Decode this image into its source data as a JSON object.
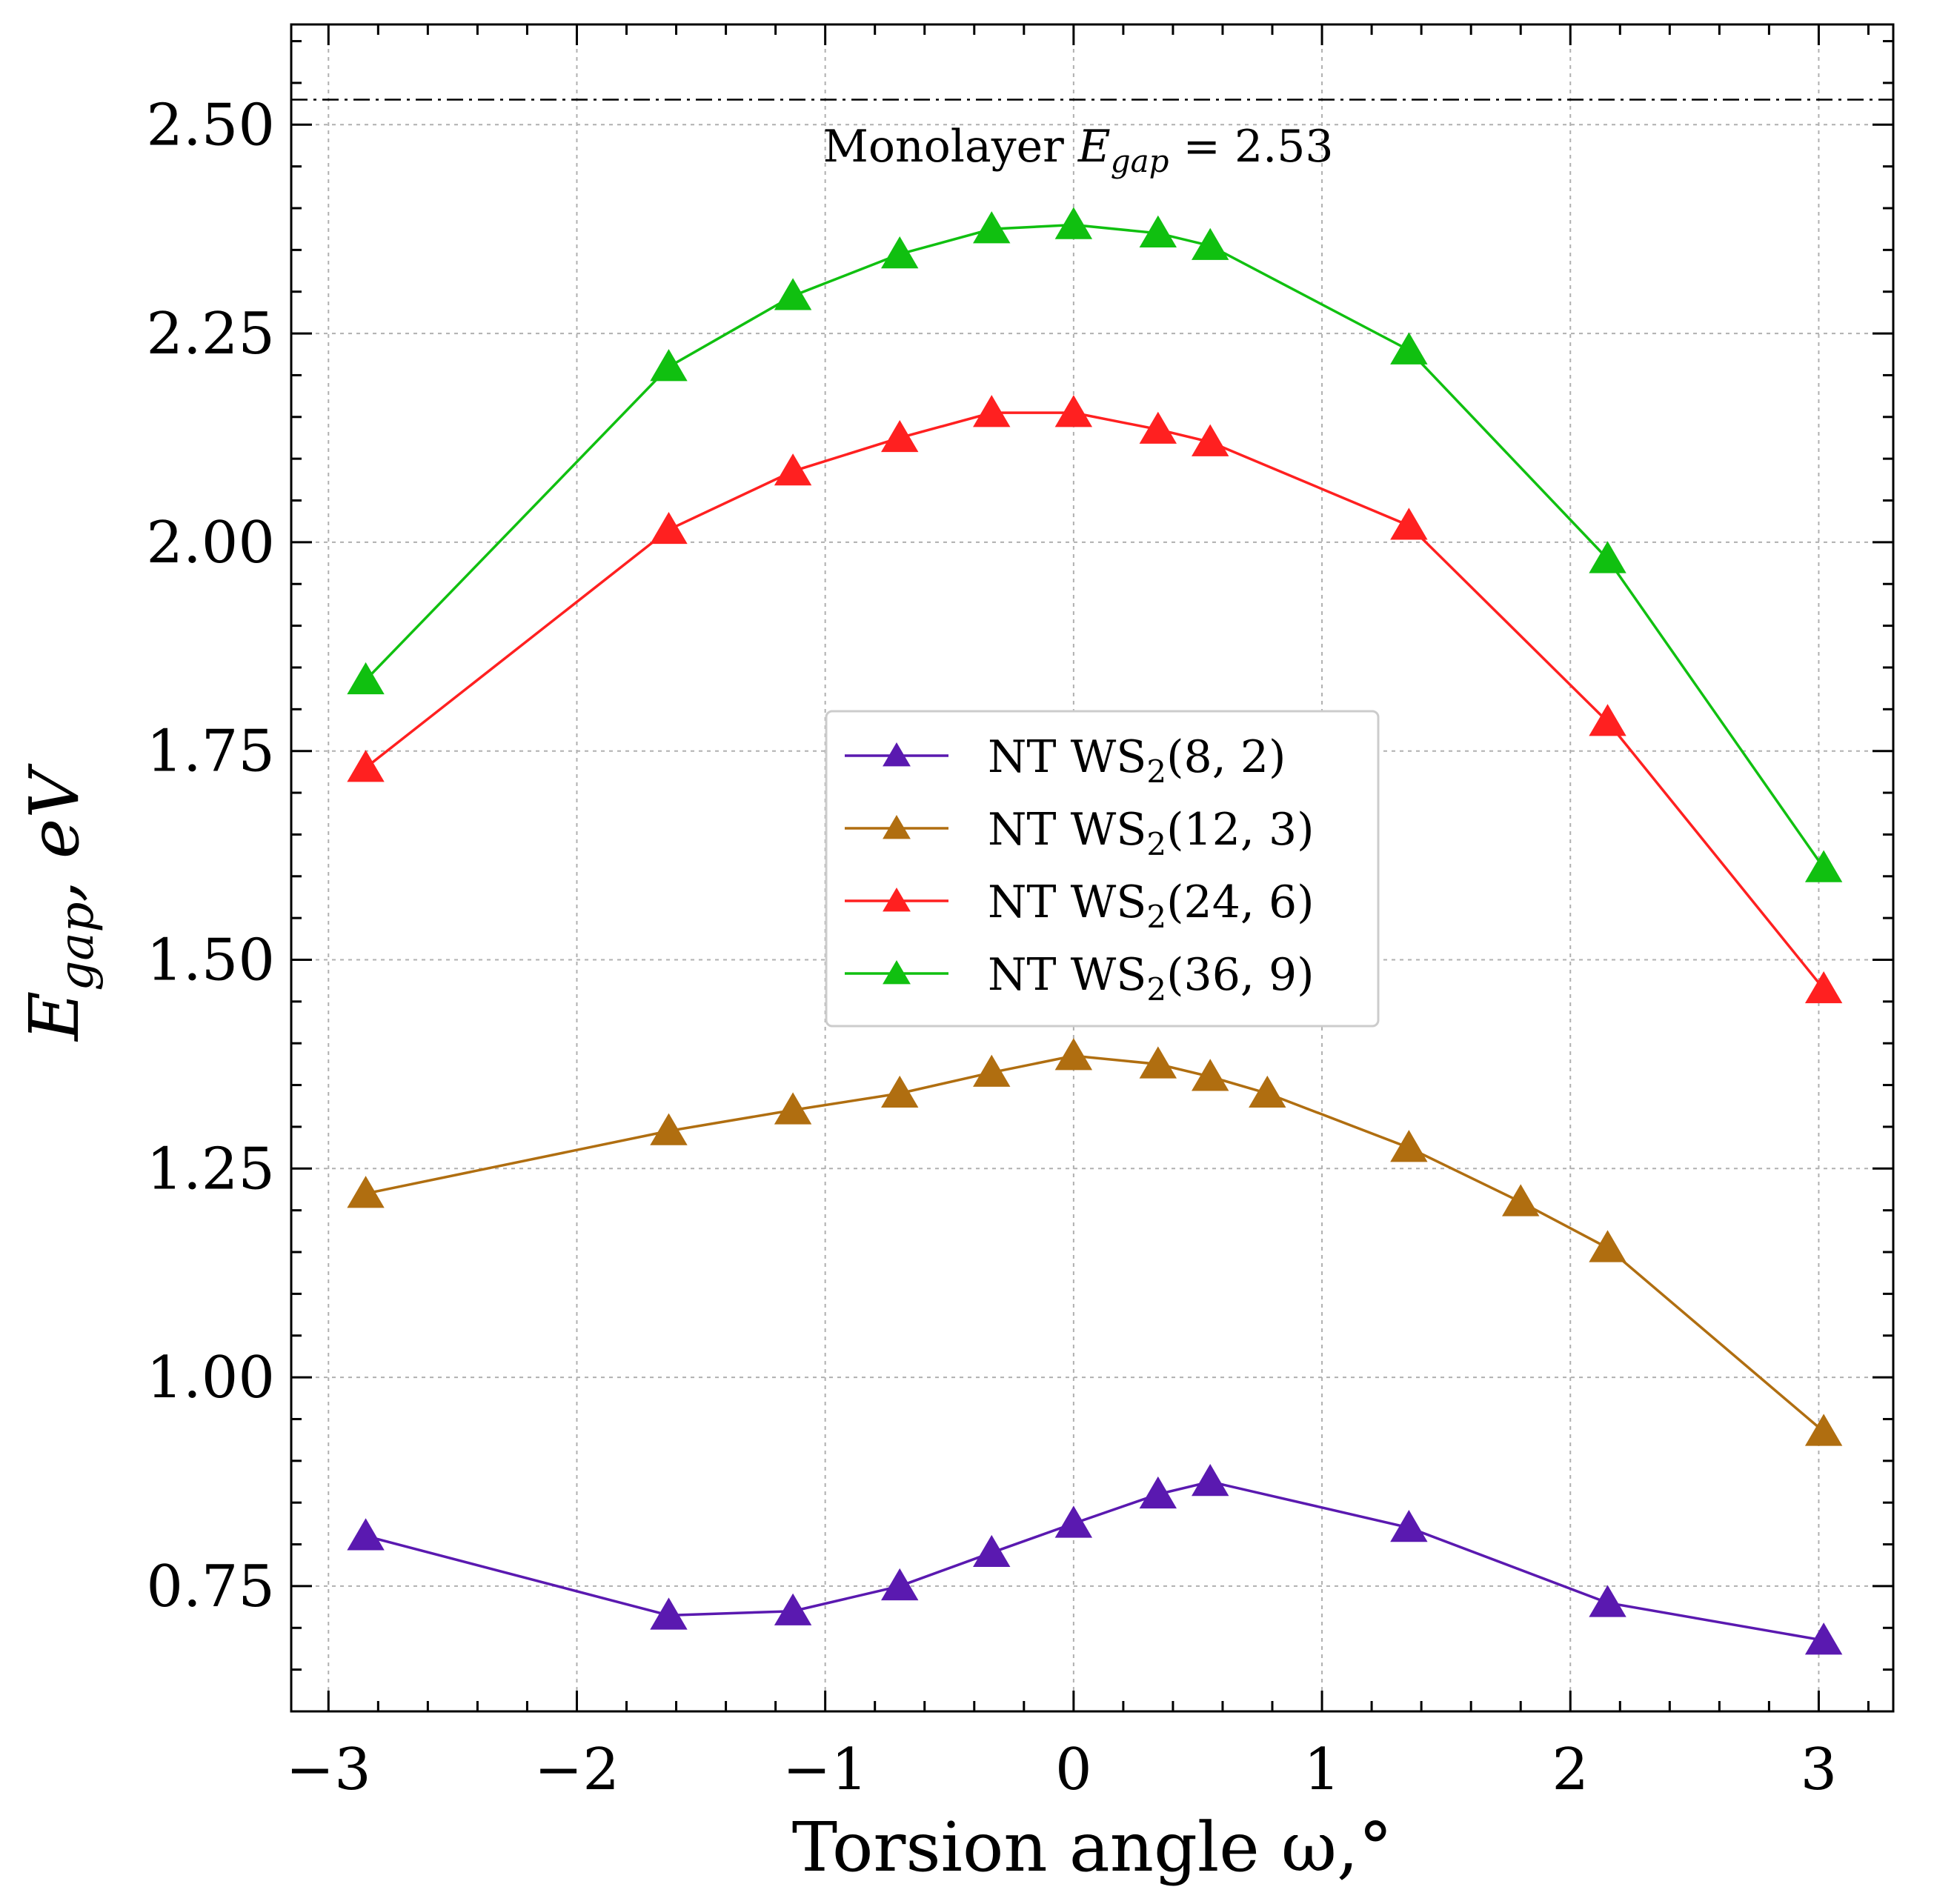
{
  "chart_data": {
    "type": "line",
    "title": "",
    "xlabel": "Torsion angle ω,°",
    "ylabel": "E_gap, eV",
    "ylabel_main": "E",
    "ylabel_sub": "gap",
    "ylabel_rest": ", eV",
    "xlim": [
      -3.15,
      3.3
    ],
    "ylim": [
      0.6,
      2.62
    ],
    "grid": true,
    "legend_position": "center",
    "x_ticks": [
      {
        "value": -3,
        "label": "−3"
      },
      {
        "value": -2,
        "label": "−2"
      },
      {
        "value": -1,
        "label": "−1"
      },
      {
        "value": 0,
        "label": "0"
      },
      {
        "value": 1,
        "label": "1"
      },
      {
        "value": 2,
        "label": "2"
      },
      {
        "value": 3,
        "label": "3"
      }
    ],
    "y_ticks": [
      {
        "value": 0.75,
        "label": "0.75"
      },
      {
        "value": 1.0,
        "label": "1.00"
      },
      {
        "value": 1.25,
        "label": "1.25"
      },
      {
        "value": 1.5,
        "label": "1.50"
      },
      {
        "value": 1.75,
        "label": "1.75"
      },
      {
        "value": 2.0,
        "label": "2.00"
      },
      {
        "value": 2.25,
        "label": "2.25"
      },
      {
        "value": 2.5,
        "label": "2.50"
      }
    ],
    "reference_line": {
      "value": 2.53,
      "label_prefix": "Monolayer ",
      "label_var": "E",
      "label_sub": "gap",
      "label_suffix": " = 2.53"
    },
    "series": [
      {
        "name": "NT WS2(8, 2)",
        "label_prefix": "NT WS",
        "label_sub": "2",
        "label_suffix": "(8, 2)",
        "color": "#5a19b0",
        "x": [
          -2.85,
          -1.63,
          -1.13,
          -0.7,
          -0.33,
          0.0,
          0.34,
          0.55,
          1.35,
          2.15,
          3.02
        ],
        "y": [
          0.81,
          0.715,
          0.72,
          0.75,
          0.79,
          0.825,
          0.86,
          0.875,
          0.82,
          0.73,
          0.685
        ]
      },
      {
        "name": "NT WS2(12, 3)",
        "label_prefix": "NT WS",
        "label_sub": "2",
        "label_suffix": "(12, 3)",
        "color": "#b06e10",
        "x": [
          -2.85,
          -1.63,
          -1.13,
          -0.7,
          -0.33,
          0.0,
          0.34,
          0.55,
          0.78,
          1.35,
          1.8,
          2.15,
          3.02
        ],
        "y": [
          1.22,
          1.295,
          1.32,
          1.34,
          1.365,
          1.385,
          1.375,
          1.36,
          1.34,
          1.275,
          1.21,
          1.155,
          0.935
        ]
      },
      {
        "name": "NT WS2(24, 6)",
        "label_prefix": "NT WS",
        "label_sub": "2",
        "label_suffix": "(24, 6)",
        "color": "#ff2020",
        "x": [
          -2.85,
          -1.63,
          -1.13,
          -0.7,
          -0.33,
          0.0,
          0.34,
          0.55,
          1.35,
          2.15,
          3.02
        ],
        "y": [
          1.73,
          2.015,
          2.085,
          2.125,
          2.155,
          2.155,
          2.135,
          2.12,
          2.02,
          1.785,
          1.465
        ]
      },
      {
        "name": "NT WS2(36, 9)",
        "label_prefix": "NT WS",
        "label_sub": "2",
        "label_suffix": "(36, 9)",
        "color": "#10c010",
        "x": [
          -2.85,
          -1.63,
          -1.13,
          -0.7,
          -0.33,
          0.0,
          0.34,
          0.55,
          1.35,
          2.15,
          3.02
        ],
        "y": [
          1.835,
          2.21,
          2.295,
          2.345,
          2.375,
          2.38,
          2.37,
          2.355,
          2.23,
          1.98,
          1.61
        ]
      }
    ]
  }
}
